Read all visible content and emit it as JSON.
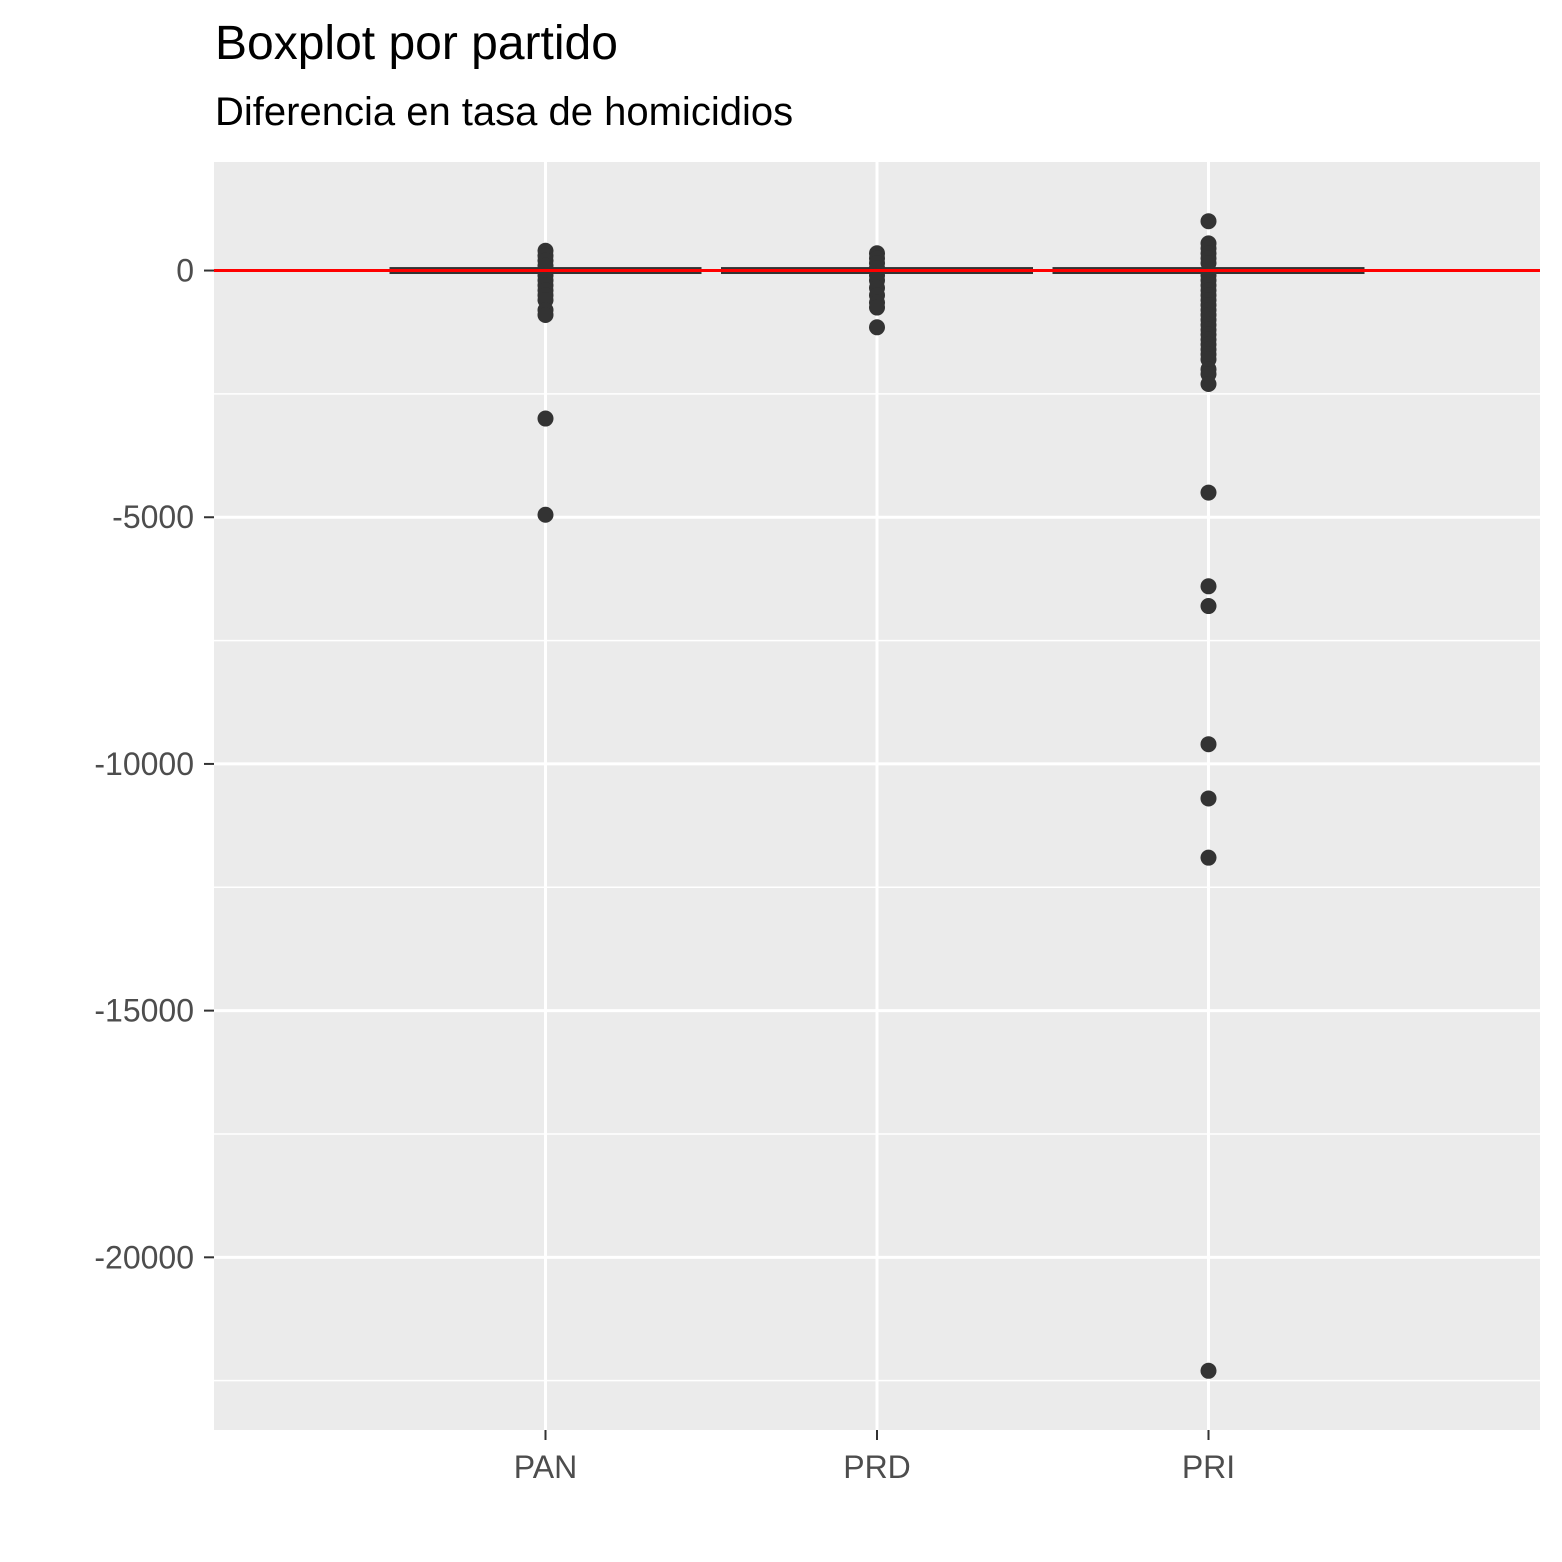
{
  "chart_data": {
    "type": "boxplot",
    "title": "Boxplot por partido",
    "subtitle": "Diferencia en tasa de homicidios",
    "xlabel": "",
    "ylabel": "",
    "categories": [
      "PAN",
      "PRD",
      "PRI"
    ],
    "ylim": [
      -23500,
      2200
    ],
    "yticks": [
      0,
      -5000,
      -10000,
      -15000,
      -20000
    ],
    "ytick_labels": [
      "0",
      "-5000",
      "-10000",
      "-15000",
      "-20000"
    ],
    "grid": true,
    "reference_line": {
      "y": 0,
      "color": "#ff0000"
    },
    "boxes": [
      {
        "category": "PAN",
        "q1": -50,
        "median": 0,
        "q3": 50,
        "whisker_low": -200,
        "whisker_high": 200
      },
      {
        "category": "PRD",
        "q1": -50,
        "median": 0,
        "q3": 50,
        "whisker_low": -200,
        "whisker_high": 200
      },
      {
        "category": "PRI",
        "q1": -50,
        "median": 0,
        "q3": 50,
        "whisker_low": -200,
        "whisker_high": 200
      }
    ],
    "outliers": [
      {
        "category": "PAN",
        "values": [
          400,
          300,
          200,
          100,
          -100,
          -200,
          -300,
          -400,
          -500,
          -600,
          -800,
          -900,
          -3000,
          -4950
        ]
      },
      {
        "category": "PRD",
        "values": [
          350,
          250,
          150,
          50,
          -100,
          -200,
          -350,
          -500,
          -650,
          -750,
          -1150
        ]
      },
      {
        "category": "PRI",
        "values": [
          1000,
          550,
          450,
          350,
          250,
          150,
          -100,
          -200,
          -300,
          -400,
          -500,
          -600,
          -700,
          -800,
          -900,
          -1000,
          -1100,
          -1200,
          -1300,
          -1400,
          -1500,
          -1600,
          -1700,
          -1800,
          -2000,
          -2100,
          -2300,
          -4500,
          -6400,
          -6800,
          -9600,
          -10700,
          -11900,
          -22300
        ]
      }
    ],
    "colors": {
      "panel": "#ebebeb",
      "grid": "#ffffff",
      "points": "#333333",
      "box_line": "#333333",
      "reference": "#ff0000",
      "tick_text": "#4d4d4d",
      "tick_mark": "#333333"
    }
  }
}
